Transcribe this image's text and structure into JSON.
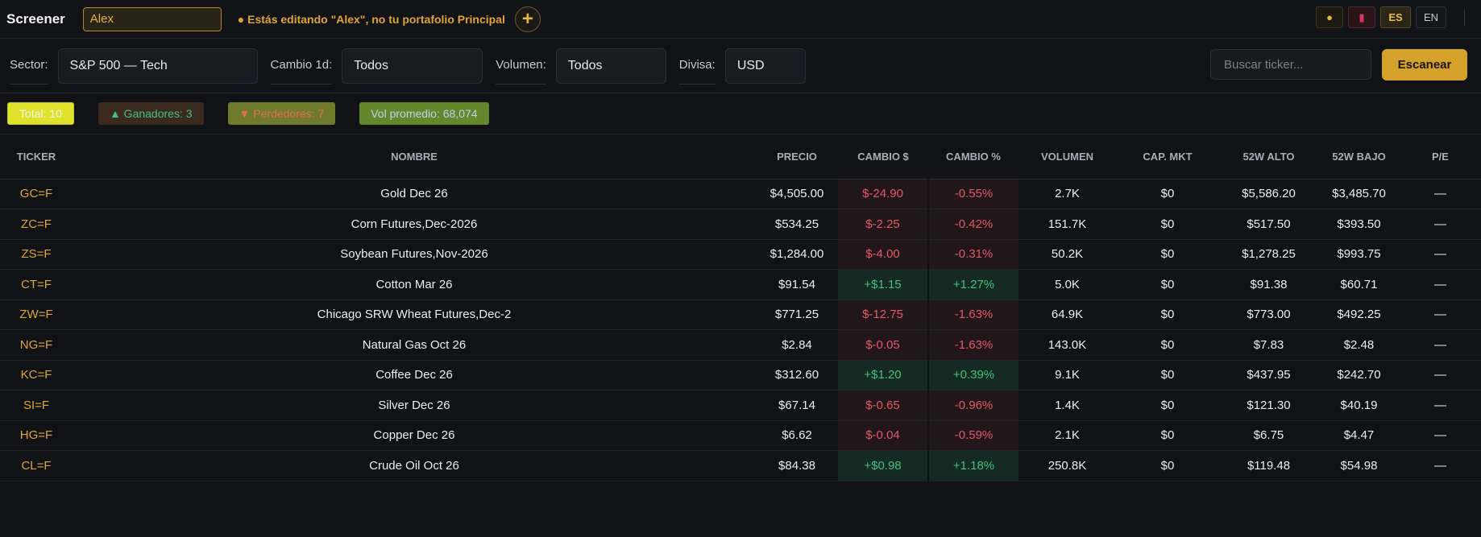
{
  "topbar": {
    "title": "Screener",
    "portfolio_name": "Alex",
    "edit_notice": "● Estás editando \"Alex\", no tu portafolio Principal",
    "add_label": "+",
    "theme_icon": "●",
    "phone_icon": "▮",
    "lang_es": "ES",
    "lang_en": "EN"
  },
  "filters": {
    "sector_label": "Sector:",
    "sector_value": "S&P 500 — Tech",
    "change_label": "Cambio 1d:",
    "change_value": "Todos",
    "volume_label": "Volumen:",
    "volume_value": "Todos",
    "currency_label": "Divisa:",
    "currency_value": "USD",
    "search_placeholder": "Buscar ticker...",
    "scan_label": "Escanear"
  },
  "summary": {
    "total": "Total: 10",
    "gainers": "▲ Ganadores: 3",
    "losers": "▼ Perdedores: 7",
    "avg_volume": "Vol promedio: 68,074"
  },
  "table": {
    "headers": [
      "TICKER",
      "NOMBRE",
      "PRECIO",
      "CAMBIO $",
      "CAMBIO %",
      "VOLUMEN",
      "CAP. MKT",
      "52W ALTO",
      "52W BAJO",
      "P/E"
    ],
    "rows": [
      {
        "ticker": "GC=F",
        "name": "Gold Dec 26",
        "price": "$4,505.00",
        "change": "$-24.90",
        "pct": "-0.55%",
        "volume": "2.7K",
        "cap": "$0",
        "high": "$5,586.20",
        "low": "$3,485.70",
        "pe": "—",
        "dir": "neg"
      },
      {
        "ticker": "ZC=F",
        "name": "Corn Futures,Dec-2026",
        "price": "$534.25",
        "change": "$-2.25",
        "pct": "-0.42%",
        "volume": "151.7K",
        "cap": "$0",
        "high": "$517.50",
        "low": "$393.50",
        "pe": "—",
        "dir": "neg"
      },
      {
        "ticker": "ZS=F",
        "name": "Soybean Futures,Nov-2026",
        "price": "$1,284.00",
        "change": "$-4.00",
        "pct": "-0.31%",
        "volume": "50.2K",
        "cap": "$0",
        "high": "$1,278.25",
        "low": "$993.75",
        "pe": "—",
        "dir": "neg"
      },
      {
        "ticker": "CT=F",
        "name": "Cotton Mar 26",
        "price": "$91.54",
        "change": "+$1.15",
        "pct": "+1.27%",
        "volume": "5.0K",
        "cap": "$0",
        "high": "$91.38",
        "low": "$60.71",
        "pe": "—",
        "dir": "pos"
      },
      {
        "ticker": "ZW=F",
        "name": "Chicago SRW Wheat Futures,Dec-2",
        "price": "$771.25",
        "change": "$-12.75",
        "pct": "-1.63%",
        "volume": "64.9K",
        "cap": "$0",
        "high": "$773.00",
        "low": "$492.25",
        "pe": "—",
        "dir": "neg"
      },
      {
        "ticker": "NG=F",
        "name": "Natural Gas Oct 26",
        "price": "$2.84",
        "change": "$-0.05",
        "pct": "-1.63%",
        "volume": "143.0K",
        "cap": "$0",
        "high": "$7.83",
        "low": "$2.48",
        "pe": "—",
        "dir": "neg"
      },
      {
        "ticker": "KC=F",
        "name": "Coffee Dec 26",
        "price": "$312.60",
        "change": "+$1.20",
        "pct": "+0.39%",
        "volume": "9.1K",
        "cap": "$0",
        "high": "$437.95",
        "low": "$242.70",
        "pe": "—",
        "dir": "pos"
      },
      {
        "ticker": "SI=F",
        "name": "Silver Dec 26",
        "price": "$67.14",
        "change": "$-0.65",
        "pct": "-0.96%",
        "volume": "1.4K",
        "cap": "$0",
        "high": "$121.30",
        "low": "$40.19",
        "pe": "—",
        "dir": "neg"
      },
      {
        "ticker": "HG=F",
        "name": "Copper Dec 26",
        "price": "$6.62",
        "change": "$-0.04",
        "pct": "-0.59%",
        "volume": "2.1K",
        "cap": "$0",
        "high": "$6.75",
        "low": "$4.47",
        "pe": "—",
        "dir": "neg"
      },
      {
        "ticker": "CL=F",
        "name": "Crude Oil Oct 26",
        "price": "$84.38",
        "change": "+$0.98",
        "pct": "+1.18%",
        "volume": "250.8K",
        "cap": "$0",
        "high": "$119.48",
        "low": "$54.98",
        "pe": "—",
        "dir": "pos"
      }
    ]
  },
  "colors": {
    "accent": "#d4a22a",
    "negative": "#e4596a",
    "positive": "#43c27f",
    "ticker": "#e0a73b"
  }
}
